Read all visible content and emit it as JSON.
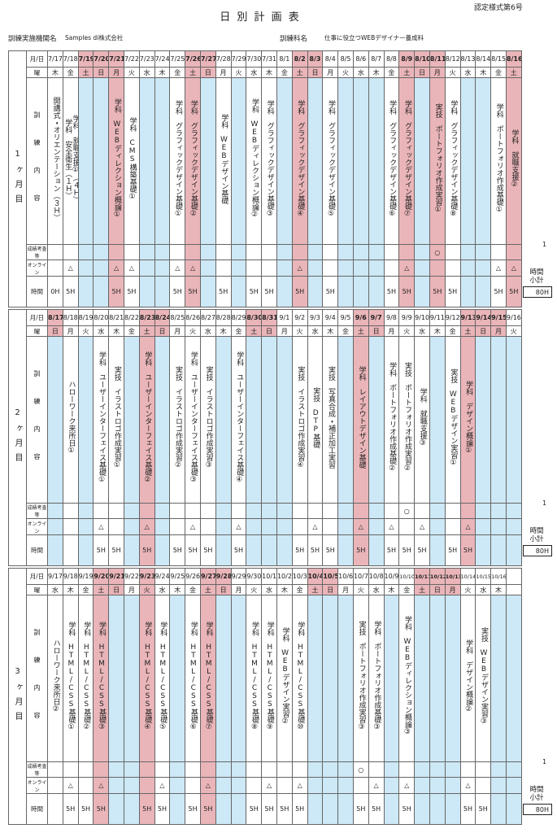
{
  "form_no": "認定様式第6号",
  "title": "日 別 計 画 表",
  "institution_label": "訓練実施機関名",
  "institution": "Samples di株式会社",
  "course_label": "訓練科名",
  "course": "仕事に役立つWEBデザイナー養成科",
  "row_labels": {
    "date": "月/日",
    "dow": "曜",
    "content": "訓練内容",
    "exam": "成績考査等",
    "online": "オンライン",
    "hours": "時間"
  },
  "subtotal_label": "時間小計",
  "colors": {
    "holiday": "#eab5b9",
    "off": "#cde8f6",
    "work": "#ffffff"
  },
  "blocks": [
    {
      "label": "1ヶ月目",
      "exam_count": 1,
      "subtotal": "80H",
      "days": [
        {
          "date": "7/17",
          "dow": "木",
          "content": [
            "開講式・オリエンテーション（３Ｈ）"
          ],
          "hours": "0H"
        },
        {
          "date": "7/18",
          "dow": "金",
          "content": [
            "学科　就職支援①（４Ｈ）",
            "学科　安全衛生（１Ｈ）"
          ],
          "online": "△",
          "hours": "5H"
        },
        {
          "date": "7/19",
          "dow": "土",
          "holiday": true
        },
        {
          "date": "7/20",
          "dow": "日",
          "holiday": true
        },
        {
          "date": "7/21",
          "dow": "月",
          "holiday": true,
          "content": [
            "学科　WEBディレクション概論①"
          ],
          "online": "△",
          "hours": "5H"
        },
        {
          "date": "7/22",
          "dow": "火",
          "content": [
            "学科　CMS構築基礎①"
          ],
          "online": "△",
          "hours": "5H"
        },
        {
          "date": "7/23",
          "dow": "水"
        },
        {
          "date": "7/24",
          "dow": "木"
        },
        {
          "date": "7/25",
          "dow": "金",
          "content": [
            "学科　グラフィックデザイン基礎①"
          ],
          "online": "△",
          "hours": "5H"
        },
        {
          "date": "7/26",
          "dow": "土",
          "holiday": true,
          "content": [
            "学科　グラフィックデザイン基礎②"
          ],
          "online": "△",
          "hours": "5H"
        },
        {
          "date": "7/27",
          "dow": "日",
          "holiday": true
        },
        {
          "date": "7/28",
          "dow": "月",
          "content": [
            "学科　WEBデザイン基礎"
          ],
          "hours": "5H"
        },
        {
          "date": "7/29",
          "dow": "火"
        },
        {
          "date": "7/30",
          "dow": "水",
          "content": [
            "学科　WEBディレクション概論②"
          ],
          "hours": "5H"
        },
        {
          "date": "7/31",
          "dow": "木",
          "content": [
            "学科　グラフィックデザイン基礎③"
          ],
          "hours": "5H"
        },
        {
          "date": "8/1",
          "dow": "金"
        },
        {
          "date": "8/2",
          "dow": "土",
          "holiday": true,
          "content": [
            "学科　グラフィックデザイン基礎④"
          ],
          "online": "△",
          "hours": "5H"
        },
        {
          "date": "8/3",
          "dow": "日",
          "holiday": true
        },
        {
          "date": "8/4",
          "dow": "月",
          "content": [
            "学科　グラフィックデザイン基礎⑤"
          ],
          "hours": "5H"
        },
        {
          "date": "8/5",
          "dow": "火"
        },
        {
          "date": "8/6",
          "dow": "水"
        },
        {
          "date": "8/7",
          "dow": "木"
        },
        {
          "date": "8/8",
          "dow": "金",
          "content": [
            "学科　グラフィックデザイン基礎⑥"
          ],
          "hours": "5H"
        },
        {
          "date": "8/9",
          "dow": "土",
          "holiday": true,
          "content": [
            "学科　グラフィックデザイン基礎⑦"
          ],
          "online": "△",
          "hours": "5H"
        },
        {
          "date": "8/10",
          "dow": "日",
          "holiday": true
        },
        {
          "date": "8/11",
          "dow": "月",
          "holiday": true,
          "content": [
            "実技　ポートフォリオ作成実習①"
          ],
          "exam": "○",
          "hours": "5H"
        },
        {
          "date": "8/12",
          "dow": "火",
          "content": [
            "学科　グラフィックデザイン基礎⑧"
          ],
          "hours": "5H"
        },
        {
          "date": "8/13",
          "dow": "水"
        },
        {
          "date": "8/14",
          "dow": "木"
        },
        {
          "date": "8/15",
          "dow": "金",
          "content": [
            "学科　ポートフォリオ作成基礎①"
          ],
          "online": "△",
          "hours": "5H"
        },
        {
          "date": "8/16",
          "dow": "土",
          "holiday": true,
          "content": [
            "学科　就職支援②"
          ],
          "online": "△",
          "hours": "5H"
        }
      ]
    },
    {
      "label": "2ヶ月目",
      "exam_count": 1,
      "subtotal": "80H",
      "days": [
        {
          "date": "8/17",
          "dow": "日",
          "holiday": true
        },
        {
          "date": "8/18",
          "dow": "月",
          "content": [
            "ハローワーク来所日①"
          ]
        },
        {
          "date": "8/19",
          "dow": "火"
        },
        {
          "date": "8/20",
          "dow": "水",
          "content": [
            "学科　ユーザーインターフェイス基礎①"
          ],
          "online": "△",
          "hours": "5H"
        },
        {
          "date": "8/21",
          "dow": "木",
          "content": [
            "実技　イラストロゴ作成実習①"
          ],
          "hours": "5H"
        },
        {
          "date": "8/22",
          "dow": "金"
        },
        {
          "date": "8/23",
          "dow": "土",
          "holiday": true,
          "content": [
            "学科　ユーザーインターフェイス基礎②"
          ],
          "online": "△",
          "hours": "5H"
        },
        {
          "date": "8/24",
          "dow": "日",
          "holiday": true
        },
        {
          "date": "8/25",
          "dow": "月",
          "content": [
            "実技　イラストロゴ作成実習②"
          ],
          "hours": "5H"
        },
        {
          "date": "8/26",
          "dow": "火",
          "content": [
            "学科　ユーザーインターフェイス基礎③"
          ],
          "online": "△",
          "hours": "5H"
        },
        {
          "date": "8/27",
          "dow": "水",
          "content": [
            "実技　イラストロゴ作成実習③"
          ],
          "hours": "5H"
        },
        {
          "date": "8/28",
          "dow": "木"
        },
        {
          "date": "8/29",
          "dow": "金",
          "content": [
            "学科　ユーザーインターフェイス基礎④"
          ],
          "online": "△",
          "hours": "5H"
        },
        {
          "date": "8/30",
          "dow": "土",
          "holiday": true
        },
        {
          "date": "8/31",
          "dow": "日",
          "holiday": true
        },
        {
          "date": "9/1",
          "dow": "月"
        },
        {
          "date": "9/2",
          "dow": "火",
          "content": [
            "実技　イラストロゴ作成実習④"
          ],
          "hours": "5H"
        },
        {
          "date": "9/3",
          "dow": "水",
          "content": [
            "実技　DTP基礎"
          ],
          "online": "△",
          "hours": "5H"
        },
        {
          "date": "9/4",
          "dow": "木",
          "content": [
            "実技　写真合成・補正加工実習"
          ],
          "hours": "5H"
        },
        {
          "date": "9/5",
          "dow": "金"
        },
        {
          "date": "9/6",
          "dow": "土",
          "holiday": true,
          "content": [
            "学科　レイアウトデザイン基礎"
          ],
          "online": "△",
          "hours": "5H"
        },
        {
          "date": "9/7",
          "dow": "日",
          "holiday": true
        },
        {
          "date": "9/8",
          "dow": "月",
          "content": [
            "学科　ポートフォリオ作成基礎②"
          ],
          "online": "△",
          "hours": "5H"
        },
        {
          "date": "9/9",
          "dow": "火",
          "content": [
            "実技　ポートフォリオ作成実習②"
          ],
          "exam": "○",
          "hours": "5H"
        },
        {
          "date": "9/10",
          "dow": "水",
          "content": [
            "学科　就職支援③"
          ],
          "online": "△",
          "hours": "5H"
        },
        {
          "date": "9/11",
          "dow": "木"
        },
        {
          "date": "9/12",
          "dow": "金",
          "content": [
            "実技　WEBデザイン実習①"
          ],
          "hours": "5H"
        },
        {
          "date": "9/13",
          "dow": "土",
          "holiday": true,
          "content": [
            "学科　デザイン概論①"
          ],
          "online": "△",
          "hours": "5H"
        },
        {
          "date": "9/14",
          "dow": "日",
          "holiday": true
        },
        {
          "date": "9/15",
          "dow": "月",
          "holiday": true
        },
        {
          "date": "9/16",
          "dow": "火"
        }
      ]
    },
    {
      "label": "3ヶ月目",
      "exam_count": 1,
      "subtotal": "80H",
      "days": [
        {
          "date": "9/17",
          "dow": "水",
          "content": [
            "ハローワーク来所日②"
          ]
        },
        {
          "date": "9/18",
          "dow": "木",
          "content": [
            "学科　HTML/CSS基礎①"
          ],
          "online": "△",
          "hours": "5H"
        },
        {
          "date": "9/19",
          "dow": "金",
          "content": [
            "学科　HTML/CSS基礎②"
          ],
          "hours": "5H"
        },
        {
          "date": "9/20",
          "dow": "土",
          "holiday": true,
          "content": [
            "学科　HTML/CSS基礎③"
          ],
          "online": "△",
          "hours": "5H"
        },
        {
          "date": "9/21",
          "dow": "日",
          "holiday": true
        },
        {
          "date": "9/22",
          "dow": "月"
        },
        {
          "date": "9/23",
          "dow": "火",
          "holiday": true,
          "content": [
            "学科　HTML/CSS基礎④"
          ],
          "hours": "5H"
        },
        {
          "date": "9/24",
          "dow": "水",
          "content": [
            "学科　HTML/CSS基礎⑤"
          ],
          "online": "△",
          "hours": "5H"
        },
        {
          "date": "9/25",
          "dow": "木"
        },
        {
          "date": "9/26",
          "dow": "金",
          "content": [
            "学科　HTML/CSS基礎⑥"
          ],
          "hours": "5H"
        },
        {
          "date": "9/27",
          "dow": "土",
          "holiday": true,
          "content": [
            "学科　HTML/CSS基礎⑦"
          ],
          "online": "△",
          "hours": "5H"
        },
        {
          "date": "9/28",
          "dow": "日",
          "holiday": true
        },
        {
          "date": "9/29",
          "dow": "月"
        },
        {
          "date": "9/30",
          "dow": "火",
          "content": [
            "学科　HTML/CSS基礎⑧"
          ],
          "hours": "5H"
        },
        {
          "date": "10/1",
          "dow": "水",
          "content": [
            "学科　HTML/CSS基礎⑨"
          ],
          "online": "△",
          "hours": "5H"
        },
        {
          "date": "10/2",
          "dow": "木",
          "content": [
            "学科　WEBデザイン実習②"
          ],
          "hours": "5H"
        },
        {
          "date": "10/3",
          "dow": "金",
          "content": [
            "学科　HTML/CSS基礎⑩"
          ],
          "online": "△",
          "hours": "5H"
        },
        {
          "date": "10/4",
          "dow": "土",
          "holiday": true
        },
        {
          "date": "10/5",
          "dow": "日",
          "holiday": true
        },
        {
          "date": "10/6",
          "dow": "月"
        },
        {
          "date": "10/7",
          "dow": "火",
          "content": [
            "実技　ポートフォリオ作成実習③"
          ],
          "exam": "○",
          "hours": "5H"
        },
        {
          "date": "10/8",
          "dow": "水",
          "content": [
            "学科　ポートフォリオ作成基礎③"
          ],
          "online": "△",
          "hours": "5H"
        },
        {
          "date": "10/9",
          "dow": "木"
        },
        {
          "date": "10/10",
          "dow": "金",
          "content": [
            "学科　WEBディレクション概論③"
          ],
          "online": "△",
          "hours": "5H"
        },
        {
          "date": "10/11",
          "dow": "土",
          "holiday": true
        },
        {
          "date": "10/12",
          "dow": "日",
          "holiday": true
        },
        {
          "date": "10/13",
          "dow": "月",
          "holiday": true
        },
        {
          "date": "10/14",
          "dow": "火",
          "content": [
            "学科　デザイン概論②"
          ],
          "online": "△",
          "hours": "5H"
        },
        {
          "date": "10/15",
          "dow": "水",
          "content": [
            "実技　WEBデザイン実習③"
          ],
          "hours": "5H"
        },
        {
          "date": "10/16",
          "dow": "木"
        },
        {}
      ]
    }
  ]
}
